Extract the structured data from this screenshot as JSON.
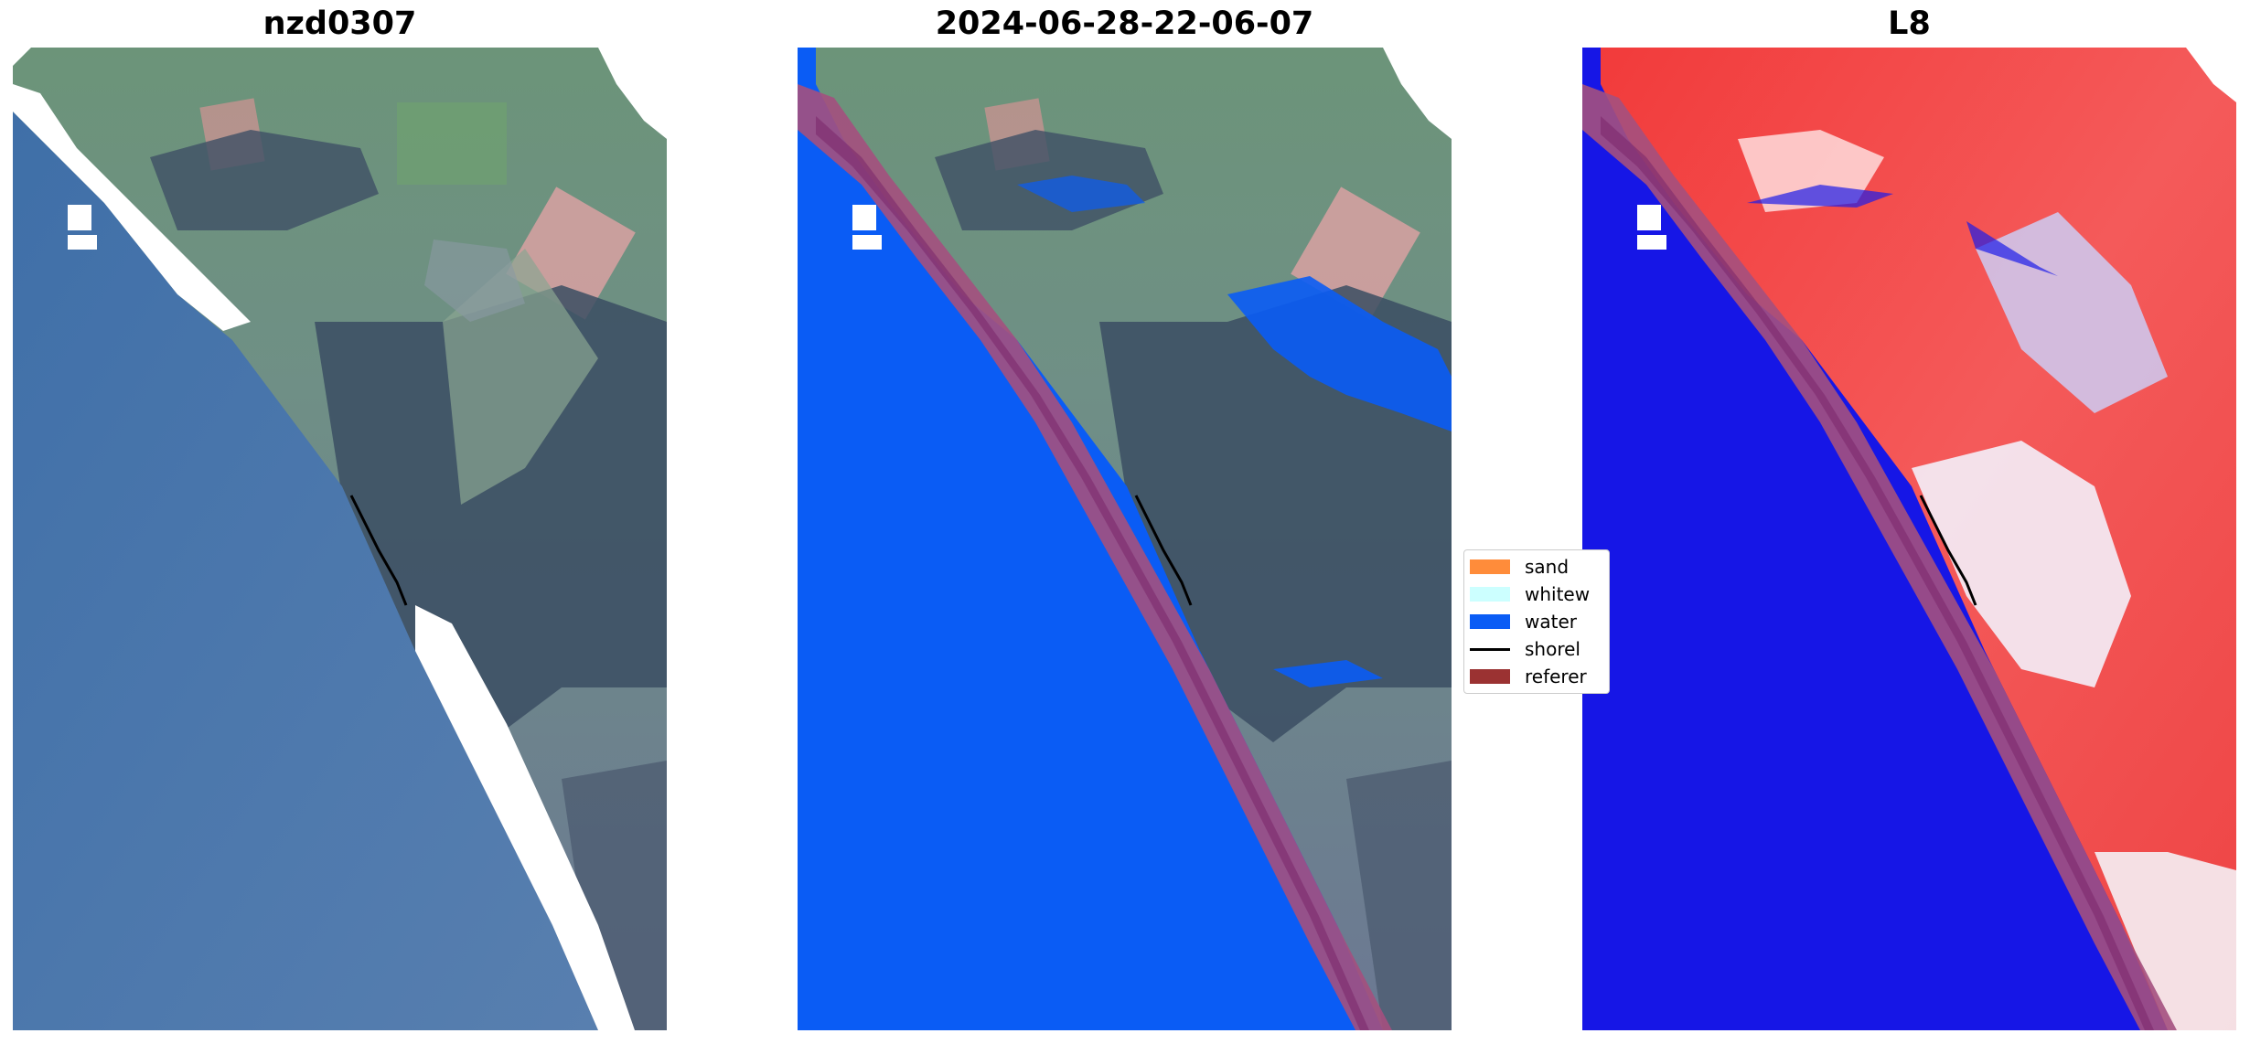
{
  "panels": [
    {
      "title": "nzd0307"
    },
    {
      "title": "2024-06-28-22-06-07"
    },
    {
      "title": "L8"
    }
  ],
  "legend": {
    "items": [
      {
        "label": "sand",
        "color": "#ff8c3a",
        "kind": "patch"
      },
      {
        "label": "whitew",
        "color": "#ccffff",
        "kind": "patch"
      },
      {
        "label": "water",
        "color": "#0a5cf5",
        "kind": "patch"
      },
      {
        "label": "shorel",
        "color": "#000000",
        "kind": "line"
      },
      {
        "label": "referer",
        "color": "#9b3232",
        "kind": "patch"
      }
    ]
  },
  "colors": {
    "sea": "#4f78ad",
    "land": "#5f7f7a",
    "forest": "#3f5268",
    "beach": "#ffffff",
    "water_class": "#0a5cf5",
    "reference_band": "#a4507e",
    "index_water": "#1616e6",
    "index_land": "#f22c2c"
  }
}
